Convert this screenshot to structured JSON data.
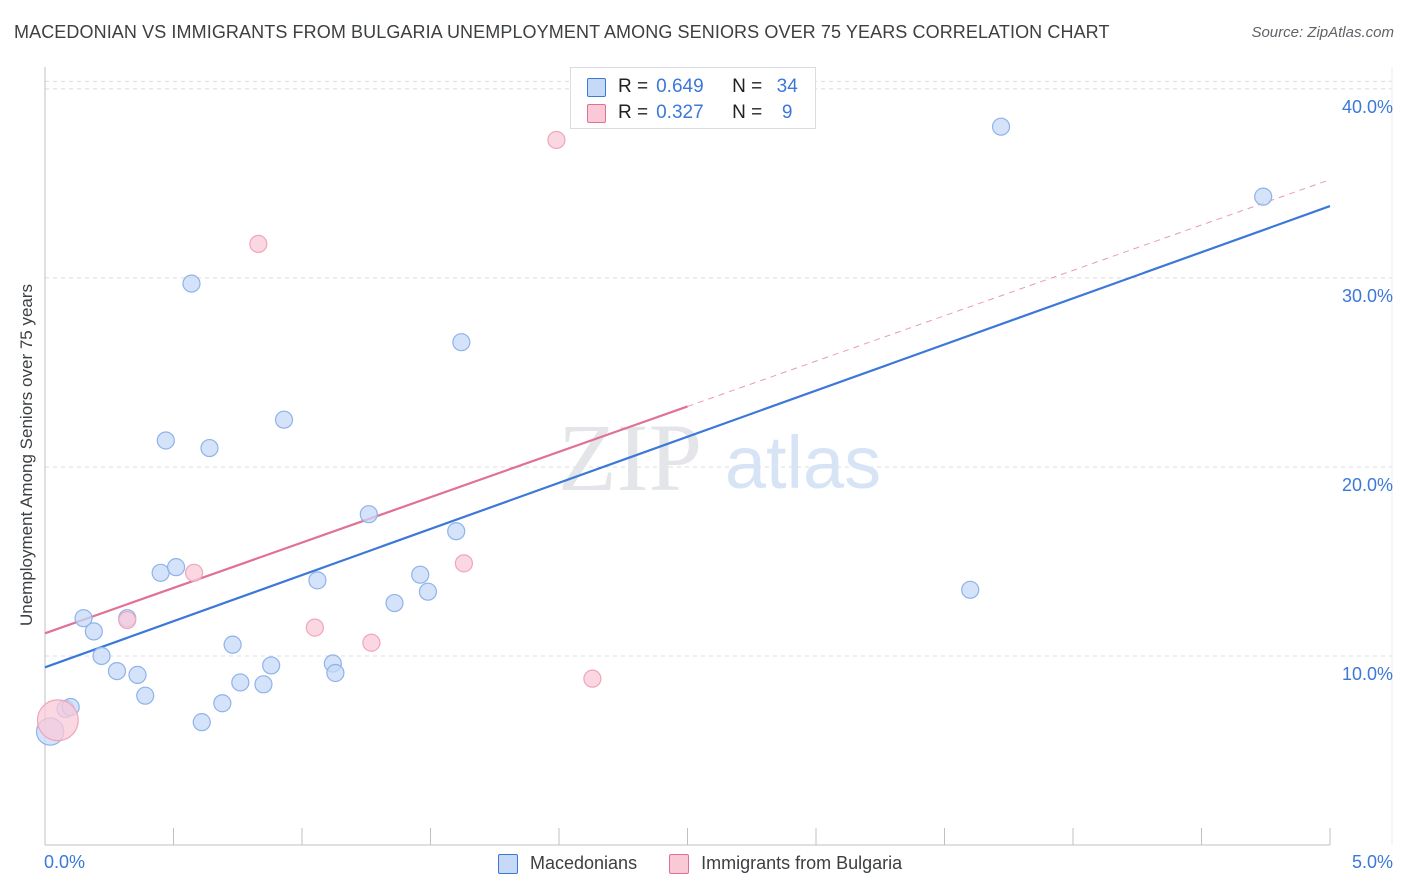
{
  "header": {
    "title": "MACEDONIAN VS IMMIGRANTS FROM BULGARIA UNEMPLOYMENT AMONG SENIORS OVER 75 YEARS CORRELATION CHART",
    "source": "Source: ZipAtlas.com"
  },
  "colors": {
    "blue": "#3b78d8",
    "blue_fill": "#c6daf7",
    "pink": "#e07096",
    "pink_fill": "#f9c9d8",
    "grid": "#dadce0",
    "axis_text": "#3b78d8"
  },
  "legend": {
    "rows": [
      {
        "r_label": "R =",
        "r_value": "0.649",
        "n_label": "N =",
        "n_value": "34"
      },
      {
        "r_label": "R =",
        "r_value": "0.327",
        "n_label": "N =",
        "n_value": "9"
      }
    ]
  },
  "watermark": {
    "zip": "ZIP",
    "atlas": "atlas"
  },
  "chart_data": {
    "type": "scatter",
    "title": "MACEDONIAN VS IMMIGRANTS FROM BULGARIA UNEMPLOYMENT AMONG SENIORS OVER 75 YEARS CORRELATION CHART",
    "xlabel": "",
    "ylabel": "Unemployment Among Seniors over 75 years",
    "xlim": [
      0,
      5
    ],
    "ylim": [
      0,
      41
    ],
    "x_tick_labels": [
      "0.0%",
      "5.0%"
    ],
    "y_ticks": [
      10,
      20,
      30,
      40
    ],
    "y_tick_labels": [
      "10.0%",
      "20.0%",
      "30.0%",
      "40.0%"
    ],
    "legend_position": "top-center",
    "series": [
      {
        "name": "Macedonians",
        "color": "#3b78d8",
        "points": [
          [
            0.02,
            6.0,
            1.6
          ],
          [
            0.08,
            7.2,
            1
          ],
          [
            0.1,
            7.3,
            1
          ],
          [
            0.15,
            12.0,
            1
          ],
          [
            0.19,
            11.3,
            1
          ],
          [
            0.22,
            10.0,
            1
          ],
          [
            0.28,
            9.2,
            1
          ],
          [
            0.32,
            12.0,
            1
          ],
          [
            0.36,
            9.0,
            1
          ],
          [
            0.39,
            7.9,
            1
          ],
          [
            0.45,
            14.4,
            1
          ],
          [
            0.47,
            21.4,
            1
          ],
          [
            0.51,
            14.7,
            1
          ],
          [
            0.57,
            29.7,
            1
          ],
          [
            0.61,
            6.5,
            1
          ],
          [
            0.64,
            21.0,
            1
          ],
          [
            0.69,
            7.5,
            1
          ],
          [
            0.73,
            10.6,
            1
          ],
          [
            0.76,
            8.6,
            1
          ],
          [
            0.85,
            8.5,
            1
          ],
          [
            0.88,
            9.5,
            1
          ],
          [
            0.93,
            22.5,
            1
          ],
          [
            1.06,
            14.0,
            1
          ],
          [
            1.12,
            9.6,
            1
          ],
          [
            1.13,
            9.1,
            1
          ],
          [
            1.26,
            17.5,
            1
          ],
          [
            1.36,
            12.8,
            1
          ],
          [
            1.46,
            14.3,
            1
          ],
          [
            1.49,
            13.4,
            1
          ],
          [
            1.6,
            16.6,
            1
          ],
          [
            1.62,
            26.6,
            1
          ],
          [
            3.6,
            13.5,
            1
          ],
          [
            3.72,
            38.0,
            1
          ],
          [
            4.74,
            34.3,
            1
          ]
        ],
        "trendline": {
          "x": [
            0,
            5
          ],
          "y": [
            9.4,
            33.8
          ]
        }
      },
      {
        "name": "Immigrants from Bulgaria",
        "color": "#e07096",
        "points": [
          [
            0.05,
            6.6,
            2.4
          ],
          [
            0.32,
            11.9,
            1
          ],
          [
            0.58,
            14.4,
            1
          ],
          [
            0.83,
            31.8,
            1
          ],
          [
            1.05,
            11.5,
            1
          ],
          [
            1.27,
            10.7,
            1
          ],
          [
            1.63,
            14.9,
            1
          ],
          [
            1.99,
            37.3,
            1
          ],
          [
            2.13,
            8.8,
            1
          ]
        ],
        "trendline": {
          "x": [
            0,
            2.5
          ],
          "y": [
            11.2,
            23.2
          ],
          "dashed_extension": {
            "x": [
              2.5,
              5
            ],
            "y": [
              23.2,
              35.2
            ]
          }
        }
      }
    ]
  },
  "bottom_legend": [
    {
      "label": "Macedonians"
    },
    {
      "label": "Immigrants from Bulgaria"
    }
  ]
}
